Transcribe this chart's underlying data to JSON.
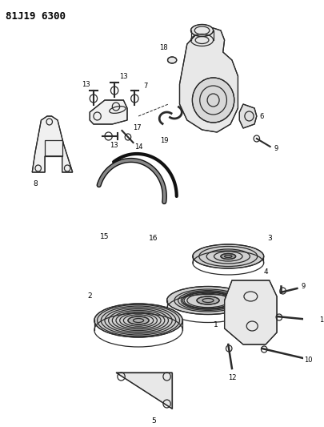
{
  "title": "81J19 6300",
  "background_color": "#ffffff",
  "line_color": "#2a2a2a",
  "text_color": "#000000",
  "fig_w": 4.05,
  "fig_h": 5.33,
  "dpi": 100
}
